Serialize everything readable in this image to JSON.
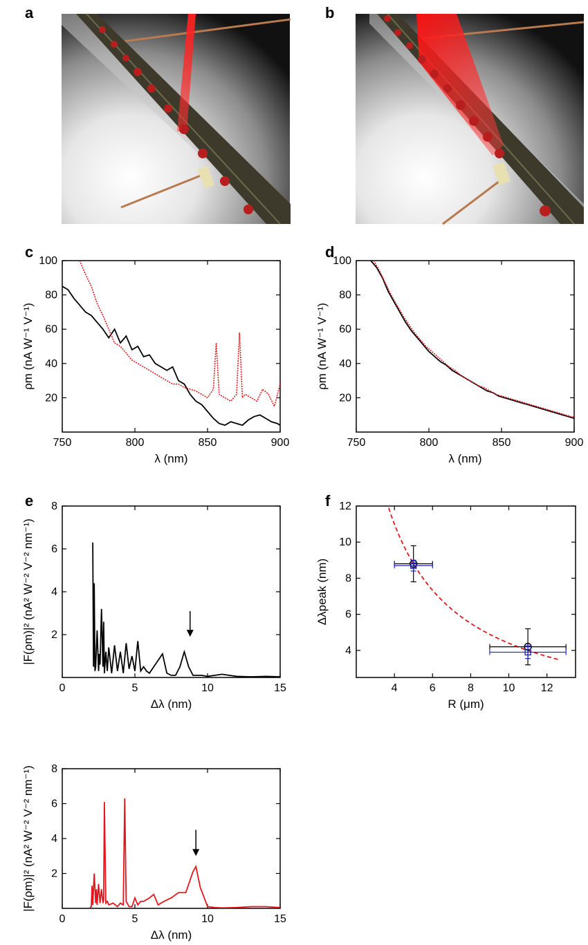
{
  "panels": {
    "a": "a",
    "b": "b",
    "c": "c",
    "d": "d",
    "e": "e",
    "f": "f"
  },
  "colors": {
    "black": "#000000",
    "red": "#e4161b",
    "blue": "#1c23d6"
  },
  "chart_data": [
    {
      "id": "c",
      "type": "line",
      "xlabel": "λ (nm)",
      "ylabel": "ρm (nA W⁻¹ V⁻¹)",
      "xlim": [
        750,
        900
      ],
      "ylim": [
        0,
        100
      ],
      "xticks": [
        750,
        800,
        850,
        900
      ],
      "yticks": [
        20,
        40,
        60,
        80,
        100
      ],
      "series": [
        {
          "color": "black",
          "style": "solid",
          "x": [
            750,
            754,
            758,
            762,
            766,
            770,
            774,
            778,
            782,
            786,
            790,
            794,
            798,
            802,
            806,
            810,
            814,
            818,
            822,
            826,
            830,
            834,
            838,
            842,
            846,
            850,
            854,
            858,
            862,
            866,
            870,
            874,
            878,
            882,
            886,
            890,
            894,
            898,
            900
          ],
          "y": [
            85,
            83,
            78,
            74,
            70,
            68,
            64,
            60,
            55,
            60,
            52,
            56,
            48,
            50,
            44,
            45,
            40,
            38,
            36,
            38,
            30,
            28,
            22,
            18,
            16,
            12,
            8,
            5,
            4,
            6,
            5,
            4,
            7,
            9,
            10,
            8,
            6,
            5,
            4
          ]
        },
        {
          "color": "red",
          "style": "dotted",
          "x": [
            762,
            766,
            770,
            774,
            778,
            782,
            786,
            790,
            794,
            798,
            802,
            806,
            810,
            814,
            818,
            822,
            826,
            830,
            834,
            838,
            842,
            846,
            850,
            854,
            856,
            858,
            862,
            866,
            870,
            872,
            874,
            876,
            880,
            884,
            888,
            892,
            896,
            900
          ],
          "y": [
            100,
            92,
            85,
            75,
            68,
            60,
            52,
            50,
            46,
            42,
            40,
            38,
            36,
            34,
            32,
            30,
            28,
            28,
            26,
            25,
            24,
            22,
            20,
            25,
            52,
            22,
            20,
            18,
            22,
            58,
            20,
            22,
            20,
            18,
            25,
            22,
            15,
            28
          ]
        }
      ]
    },
    {
      "id": "d",
      "type": "line",
      "xlabel": "λ (nm)",
      "ylabel": "ρm (nA W⁻¹ V⁻¹)",
      "xlim": [
        750,
        900
      ],
      "ylim": [
        0,
        100
      ],
      "xticks": [
        750,
        800,
        850,
        900
      ],
      "yticks": [
        20,
        40,
        60,
        80,
        100
      ],
      "series": [
        {
          "color": "black",
          "style": "solid",
          "x": [
            760,
            764,
            768,
            772,
            776,
            780,
            784,
            788,
            792,
            796,
            800,
            804,
            808,
            812,
            816,
            820,
            824,
            828,
            832,
            836,
            840,
            844,
            848,
            852,
            856,
            860,
            864,
            868,
            872,
            876,
            880,
            884,
            888,
            892,
            896,
            900
          ],
          "y": [
            100,
            96,
            90,
            82,
            76,
            70,
            64,
            59,
            55,
            51,
            47,
            44,
            41,
            39,
            36,
            34,
            32,
            30,
            28,
            26,
            24,
            23,
            21,
            20,
            19,
            18,
            17,
            16,
            15,
            14,
            13,
            12,
            11,
            10,
            9,
            8
          ]
        },
        {
          "color": "red",
          "style": "dotted",
          "x": [
            762,
            766,
            770,
            774,
            778,
            782,
            786,
            790,
            794,
            798,
            802,
            806,
            810,
            814,
            818,
            822,
            826,
            830,
            834,
            838,
            842,
            846,
            850,
            854,
            858,
            862,
            866,
            870,
            874,
            878,
            882,
            886,
            890,
            894,
            898,
            900
          ],
          "y": [
            100,
            94,
            87,
            80,
            74,
            68,
            63,
            58,
            54,
            50,
            47,
            44,
            41,
            38,
            36,
            33,
            31,
            29,
            27,
            26,
            24,
            22,
            21,
            20,
            19,
            18,
            17,
            16,
            15,
            14,
            13,
            12,
            11,
            10,
            9,
            9
          ]
        }
      ]
    },
    {
      "id": "e1",
      "type": "line",
      "xlabel": "Δλ (nm)",
      "ylabel": "|F(ρm)|² (nA² W⁻² V⁻² nm⁻¹)",
      "xlim": [
        0,
        15
      ],
      "ylim": [
        0,
        8
      ],
      "xticks": [
        0,
        5,
        10,
        15
      ],
      "yticks": [
        2,
        4,
        6,
        8
      ],
      "series": [
        {
          "color": "black",
          "style": "solid",
          "x": [
            2.1,
            2.15,
            2.2,
            2.25,
            2.3,
            2.4,
            2.5,
            2.55,
            2.6,
            2.7,
            2.8,
            2.85,
            2.9,
            3.0,
            3.1,
            3.2,
            3.4,
            3.6,
            3.8,
            4.0,
            4.2,
            4.4,
            4.6,
            4.8,
            5.0,
            5.2,
            5.4,
            5.6,
            5.8,
            6.0,
            6.3,
            6.6,
            6.9,
            7.2,
            7.5,
            7.8,
            8.1,
            8.4,
            8.7,
            9.0,
            9.3,
            9.6,
            10.0,
            10.5,
            11.0,
            11.5,
            12,
            13,
            14,
            15
          ],
          "y": [
            6.3,
            0.5,
            4.4,
            0.3,
            0.5,
            2.2,
            0.3,
            1.1,
            0.6,
            3.2,
            0.5,
            2.6,
            0.2,
            1.2,
            0.3,
            1.4,
            0.2,
            1.5,
            0.3,
            1.2,
            0.2,
            1.6,
            0.4,
            1.0,
            0.3,
            1.7,
            0.3,
            0.5,
            0.3,
            0.2,
            0.5,
            0.8,
            1.1,
            0.2,
            0.1,
            0.1,
            0.5,
            1.2,
            0.5,
            0.1,
            0.1,
            0.1,
            0.05,
            0.1,
            0.15,
            0.1,
            0.05,
            0.03,
            0.05,
            0.03
          ]
        }
      ],
      "annotations": [
        {
          "type": "arrow",
          "x": 8.8,
          "y_from": 3.1,
          "y_to": 1.9
        }
      ]
    },
    {
      "id": "e2",
      "type": "line",
      "xlabel": "Δλ (nm)",
      "ylabel": "|F(ρm)|² (nA² W⁻² V⁻² nm⁻¹)",
      "xlim": [
        0,
        15
      ],
      "ylim": [
        0,
        8
      ],
      "xticks": [
        0,
        5,
        10,
        15
      ],
      "yticks": [
        2,
        4,
        6,
        8
      ],
      "series": [
        {
          "color": "red",
          "style": "solid",
          "x": [
            1.9,
            2.0,
            2.05,
            2.1,
            2.2,
            2.3,
            2.35,
            2.4,
            2.5,
            2.6,
            2.7,
            2.8,
            2.85,
            2.9,
            3.0,
            3.1,
            3.2,
            3.5,
            3.8,
            4.0,
            4.2,
            4.3,
            4.4,
            4.6,
            4.8,
            5.0,
            5.2,
            5.4,
            5.6,
            6.0,
            6.3,
            6.6,
            7.0,
            7.5,
            8.0,
            8.5,
            9.0,
            9.2,
            9.5,
            10.0,
            10.5,
            11,
            12,
            13,
            14,
            15
          ],
          "y": [
            0.05,
            0.1,
            1.3,
            0.2,
            2.0,
            0.3,
            1.1,
            0.2,
            1.4,
            0.3,
            1.1,
            0.3,
            0.5,
            6.1,
            0.3,
            0.4,
            0.2,
            0.3,
            0.1,
            0.3,
            0.2,
            6.3,
            0.4,
            0.1,
            0.1,
            0.6,
            0.2,
            0.4,
            0.4,
            0.6,
            0.8,
            0.2,
            0.4,
            0.6,
            0.9,
            0.9,
            2.1,
            2.4,
            1.2,
            0.1,
            0.05,
            0.03,
            0.05,
            0.1,
            0.1,
            0.05
          ]
        }
      ],
      "annotations": [
        {
          "type": "arrow",
          "x": 9.2,
          "y_from": 4.5,
          "y_to": 3.0
        }
      ]
    },
    {
      "id": "f",
      "type": "scatter",
      "xlabel": "R (μm)",
      "ylabel": "Δλpeak (nm)",
      "xlim": [
        2,
        13.5
      ],
      "ylim": [
        2.5,
        12
      ],
      "xticks": [
        4,
        6,
        8,
        10,
        12
      ],
      "yticks": [
        4,
        6,
        8,
        10,
        12
      ],
      "series": [
        {
          "color": "black",
          "marker": "circle",
          "points": [
            {
              "x": 5,
              "y": 8.8,
              "xerr": 1,
              "yerr": 1.0
            },
            {
              "x": 11,
              "y": 4.2,
              "xerr": 2,
              "yerr": 1.0
            }
          ]
        },
        {
          "color": "blue",
          "marker": "square",
          "points": [
            {
              "x": 5,
              "y": 8.7,
              "xerr": 1,
              "yerr": 0.3
            },
            {
              "x": 11,
              "y": 3.9,
              "xerr": 2,
              "yerr": 0.35
            }
          ]
        }
      ],
      "fit": {
        "color": "red",
        "style": "dashed",
        "formula": "44/R",
        "x_range": [
          3.7,
          12.6
        ]
      }
    }
  ]
}
